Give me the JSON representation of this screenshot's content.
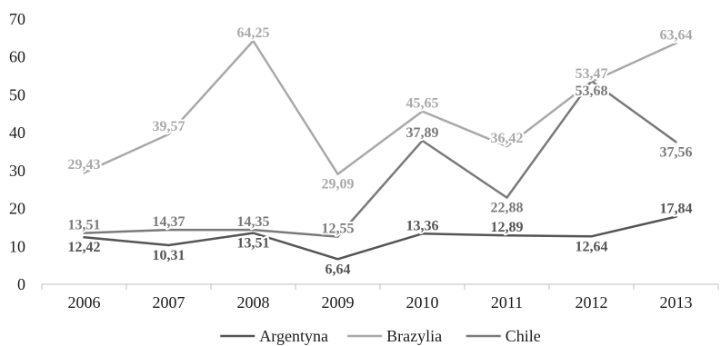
{
  "chart_data": {
    "type": "line",
    "categories": [
      "2006",
      "2007",
      "2008",
      "2009",
      "2010",
      "2011",
      "2012",
      "2013"
    ],
    "ylim": [
      0,
      70
    ],
    "yticks": [
      "0",
      "10",
      "20",
      "30",
      "40",
      "50",
      "60",
      "70"
    ],
    "grid": false,
    "legend_position": "bottom",
    "series": [
      {
        "name": "Argentyna",
        "color": "#555555",
        "values": [
          12.42,
          10.31,
          13.51,
          6.64,
          13.36,
          12.89,
          12.64,
          17.84
        ],
        "labels": [
          "12,42",
          "10,31",
          "13,51",
          "6,64",
          "13,36",
          "12,89",
          "12,64",
          "17,84"
        ]
      },
      {
        "name": "Brazylia",
        "color": "#a9a9a9",
        "values": [
          29.43,
          39.57,
          64.25,
          29.09,
          45.65,
          36.42,
          53.47,
          63.64
        ],
        "labels": [
          "29,43",
          "39,57",
          "64,25",
          "29,09",
          "45,65",
          "36,42",
          "53,47",
          "63,64"
        ]
      },
      {
        "name": "Chile",
        "color": "#7a7a7a",
        "values": [
          13.51,
          14.37,
          14.35,
          12.55,
          37.89,
          22.88,
          53.68,
          37.56
        ],
        "labels": [
          "13,51",
          "14,37",
          "14,35",
          "12,55",
          "37,89",
          "22,88",
          "53,68",
          "37,56"
        ]
      }
    ]
  }
}
